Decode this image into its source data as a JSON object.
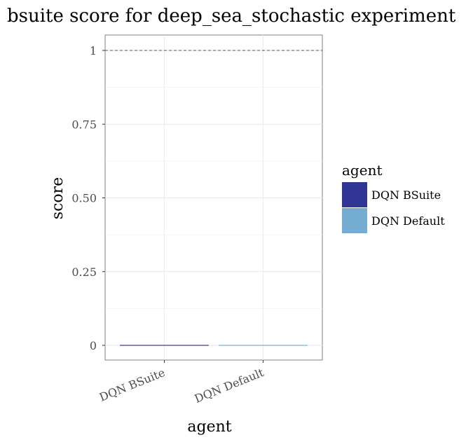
{
  "chart_data": {
    "type": "bar",
    "title": "bsuite score for deep_sea_stochastic experiment",
    "xlabel": "agent",
    "ylabel": "score",
    "categories": [
      "DQN BSuite",
      "DQN Default"
    ],
    "values": [
      0,
      0
    ],
    "colors": [
      "#313695",
      "#74add1"
    ],
    "ylim": [
      0,
      1
    ],
    "yticks": [
      0,
      0.25,
      0.5,
      0.75,
      1
    ],
    "ytick_labels": [
      "0",
      "0.25",
      "0.50",
      "0.75",
      "1"
    ],
    "reference_line": 1,
    "grid": true,
    "legend": {
      "title": "agent",
      "placement": "right",
      "entries": [
        "DQN BSuite",
        "DQN Default"
      ]
    }
  }
}
